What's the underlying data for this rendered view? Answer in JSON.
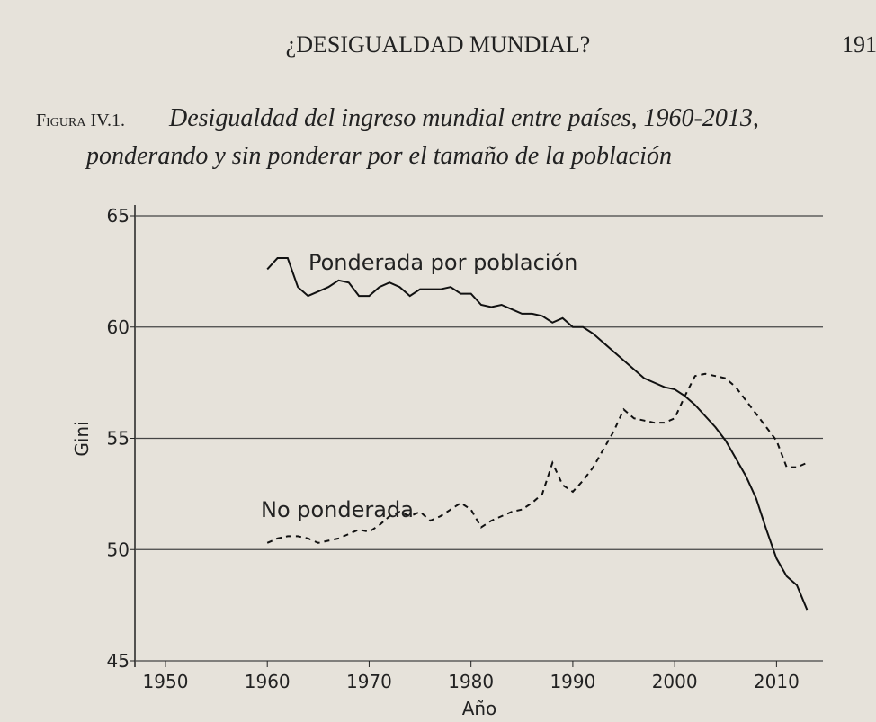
{
  "page": {
    "running_head": "¿DESIGUALDAD MUNDIAL?",
    "page_number": "191"
  },
  "chart_data": {
    "type": "line",
    "figure_label": "Figura IV.1.",
    "title_lines": [
      "Desigualdad del ingreso mundial entre países, 1960-2013,",
      "ponderando y sin ponderar por el tamaño de la población"
    ],
    "x_label": "Año",
    "y_label": "Gini",
    "x": [
      1960,
      1961,
      1962,
      1963,
      1964,
      1965,
      1966,
      1967,
      1968,
      1969,
      1970,
      1971,
      1972,
      1973,
      1974,
      1975,
      1976,
      1977,
      1978,
      1979,
      1980,
      1981,
      1982,
      1983,
      1984,
      1985,
      1986,
      1987,
      1988,
      1989,
      1990,
      1991,
      1992,
      1993,
      1994,
      1995,
      1996,
      1997,
      1998,
      1999,
      2000,
      2001,
      2002,
      2003,
      2004,
      2005,
      2006,
      2007,
      2008,
      2009,
      2010,
      2011,
      2012,
      2013
    ],
    "series": [
      {
        "name": "Ponderada por población",
        "color": "#111111",
        "dash": "solid",
        "values": [
          62.6,
          63.1,
          63.1,
          61.8,
          61.4,
          61.6,
          61.8,
          62.1,
          62.0,
          61.4,
          61.4,
          61.8,
          62.0,
          61.8,
          61.4,
          61.7,
          61.7,
          61.7,
          61.8,
          61.5,
          61.5,
          61.0,
          60.9,
          61.0,
          60.8,
          60.6,
          60.6,
          60.5,
          60.2,
          60.4,
          60.0,
          60.0,
          59.7,
          59.3,
          58.9,
          58.5,
          58.1,
          57.7,
          57.5,
          57.3,
          57.2,
          56.9,
          56.5,
          56.0,
          55.5,
          54.9,
          54.1,
          53.3,
          52.3,
          50.9,
          49.6,
          48.8,
          48.4,
          47.3
        ]
      },
      {
        "name": "No ponderada",
        "color": "#111111",
        "dash": "dashed",
        "values": [
          50.3,
          50.5,
          50.6,
          50.6,
          50.5,
          50.3,
          50.4,
          50.5,
          50.7,
          50.9,
          50.8,
          51.1,
          51.5,
          51.7,
          51.5,
          51.7,
          51.3,
          51.5,
          51.8,
          52.1,
          51.8,
          51.0,
          51.3,
          51.5,
          51.7,
          51.8,
          52.1,
          52.5,
          53.9,
          52.9,
          52.6,
          53.1,
          53.7,
          54.5,
          55.3,
          56.3,
          55.9,
          55.8,
          55.7,
          55.7,
          55.9,
          56.9,
          57.8,
          57.9,
          57.8,
          57.7,
          57.3,
          56.7,
          56.1,
          55.5,
          54.9,
          53.7,
          53.7,
          53.9
        ]
      }
    ],
    "xlim": [
      1947,
      2015
    ],
    "xticks": [
      1950,
      1960,
      1970,
      1980,
      1990,
      2000,
      2010
    ],
    "ylim": [
      45,
      65
    ],
    "yticks": [
      45,
      50,
      55,
      60,
      65
    ],
    "grid": true
  }
}
